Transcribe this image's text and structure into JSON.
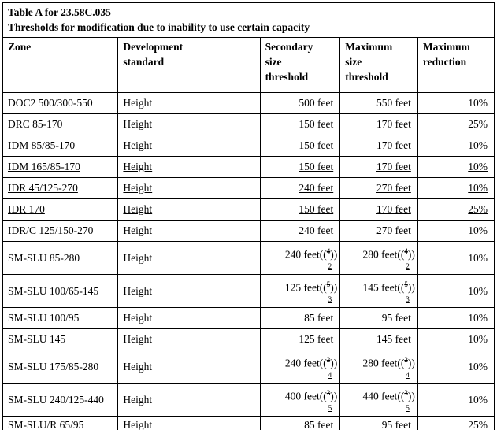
{
  "table": {
    "title_line1": "Table A for 23.58C.035",
    "title_line2": "Thresholds for modification due to inability to use certain capacity",
    "columns": [
      "Zone",
      "Development\nstandard",
      "Secondary\nsize\nthreshold",
      "Maximum\nsize\nthreshold",
      "Maximum\nreduction"
    ],
    "notation": {
      "footnote_open": "((",
      "footnote_close": "))"
    },
    "rows": [
      {
        "zone": "DOC2 500/300-550",
        "standard": "Height",
        "secondary": "500 feet",
        "maximum": "550 feet",
        "reduction": "10%",
        "underlined": false
      },
      {
        "zone": "DRC 85-170",
        "standard": "Height",
        "secondary": "150 feet",
        "maximum": "170 feet",
        "reduction": "25%",
        "underlined": false
      },
      {
        "zone": "IDM 85/85-170",
        "standard": "Height",
        "secondary": "150 feet",
        "maximum": "170 feet",
        "reduction": "10%",
        "underlined": true
      },
      {
        "zone": "IDM 165/85-170",
        "standard": "Height",
        "secondary": "150 feet",
        "maximum": "170 feet",
        "reduction": "10%",
        "underlined": true
      },
      {
        "zone": "IDR 45/125-270",
        "standard": "Height",
        "secondary": "240 feet",
        "maximum": "270 feet",
        "reduction": "10%",
        "underlined": true
      },
      {
        "zone": "IDR 170",
        "standard": "Height",
        "secondary": "150 feet",
        "maximum": "170 feet",
        "reduction": "25%",
        "underlined": true
      },
      {
        "zone": "IDR/C 125/150-270",
        "standard": "Height",
        "secondary": "240 feet",
        "maximum": "270 feet",
        "reduction": "10%",
        "underlined": true
      },
      {
        "zone": "SM-SLU 85-280",
        "standard": "Height",
        "secondary": {
          "value": "240 feet",
          "deleted_ref": "4",
          "inserted_ref": "2"
        },
        "maximum": {
          "value": "280 feet",
          "deleted_ref": "4",
          "inserted_ref": "2"
        },
        "reduction": "10%",
        "underlined": false
      },
      {
        "zone": "SM-SLU 100/65-145",
        "standard": "Height",
        "secondary": {
          "value": "125 feet",
          "deleted_ref": "5",
          "inserted_ref": "3"
        },
        "maximum": {
          "value": "145 feet",
          "deleted_ref": "5",
          "inserted_ref": "3"
        },
        "reduction": "10%",
        "underlined": false
      },
      {
        "zone": "SM-SLU 100/95",
        "standard": "Height",
        "secondary": "85 feet",
        "maximum": "95 feet",
        "reduction": "10%",
        "underlined": false
      },
      {
        "zone": "SM-SLU 145",
        "standard": "Height",
        "secondary": "125 feet",
        "maximum": "145 feet",
        "reduction": "10%",
        "underlined": false
      },
      {
        "zone": "SM-SLU 175/85-280",
        "standard": "Height",
        "secondary": {
          "value": "240 feet",
          "deleted_ref": "2",
          "inserted_ref": "4"
        },
        "maximum": {
          "value": "280 feet",
          "deleted_ref": "2",
          "inserted_ref": "4"
        },
        "reduction": "10%",
        "underlined": false
      },
      {
        "zone": "SM-SLU 240/125-440",
        "standard": "Height",
        "secondary": {
          "value": "400 feet",
          "deleted_ref": "3",
          "inserted_ref": "5"
        },
        "maximum": {
          "value": "440 feet",
          "deleted_ref": "3",
          "inserted_ref": "5"
        },
        "reduction": "10%",
        "underlined": false
      },
      {
        "zone": "SM-SLU/R 65/95",
        "standard": "Height",
        "secondary": "85 feet",
        "maximum": "95 feet",
        "reduction": "25%",
        "underlined": false
      }
    ]
  }
}
